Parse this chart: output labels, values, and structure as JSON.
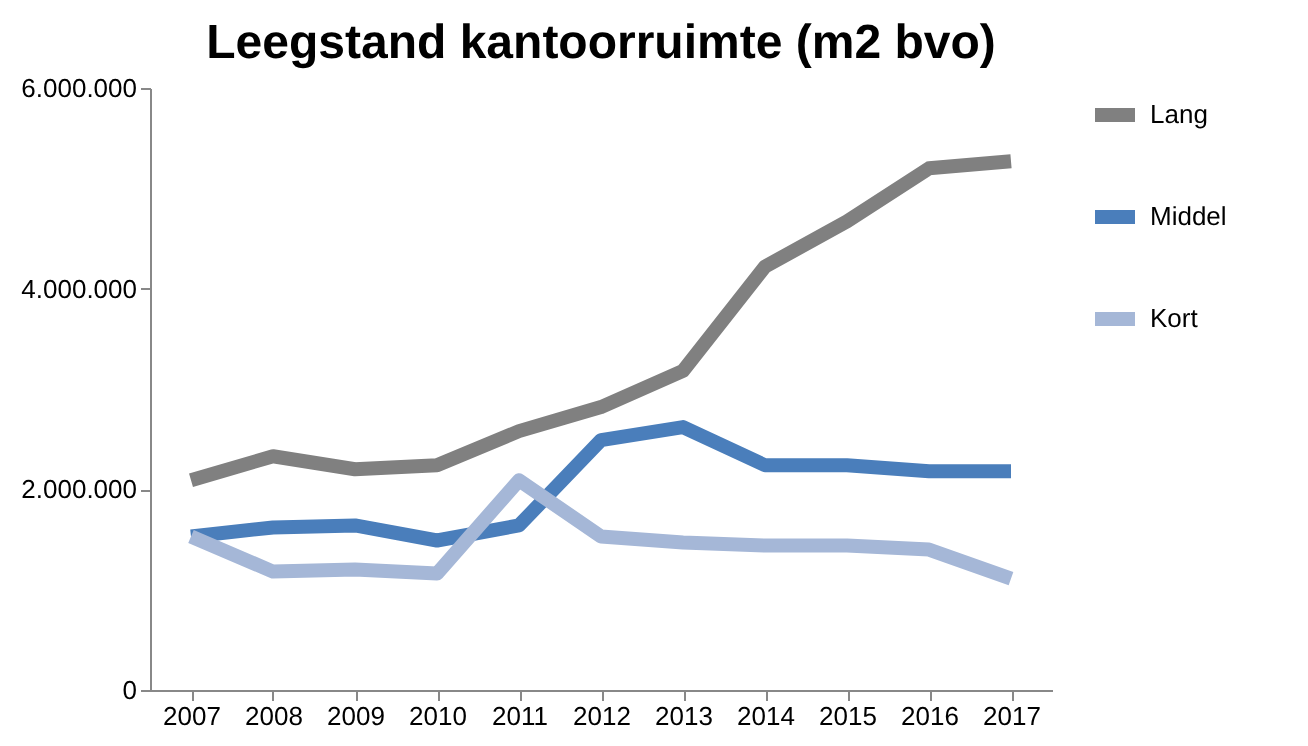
{
  "chart_data": {
    "type": "line",
    "title": "Leegstand kantoorruimte (m2 bvo)",
    "categories": [
      "2007",
      "2008",
      "2009",
      "2010",
      "2011",
      "2012",
      "2013",
      "2014",
      "2015",
      "2016",
      "2017"
    ],
    "series": [
      {
        "name": "Lang",
        "color": "#808080",
        "values": [
          2090000,
          2330000,
          2200000,
          2240000,
          2580000,
          2820000,
          3180000,
          4220000,
          4670000,
          5200000,
          5270000
        ]
      },
      {
        "name": "Middel",
        "color": "#4a7ebb",
        "values": [
          1530000,
          1620000,
          1640000,
          1490000,
          1640000,
          2490000,
          2620000,
          2240000,
          2240000,
          2180000,
          2180000
        ]
      },
      {
        "name": "Kort",
        "color": "#a5b7d7",
        "values": [
          1530000,
          1180000,
          1200000,
          1160000,
          2090000,
          1530000,
          1470000,
          1440000,
          1440000,
          1400000,
          1110000
        ]
      }
    ],
    "ylim": [
      0,
      6000000
    ],
    "yticks": [
      {
        "value": 0,
        "label": "0"
      },
      {
        "value": 2000000,
        "label": "2.000.000"
      },
      {
        "value": 4000000,
        "label": "4.000.000"
      },
      {
        "value": 6000000,
        "label": "6.000.000"
      }
    ],
    "grid": false,
    "legend": "right",
    "marker": "none",
    "line_style": "solid"
  }
}
